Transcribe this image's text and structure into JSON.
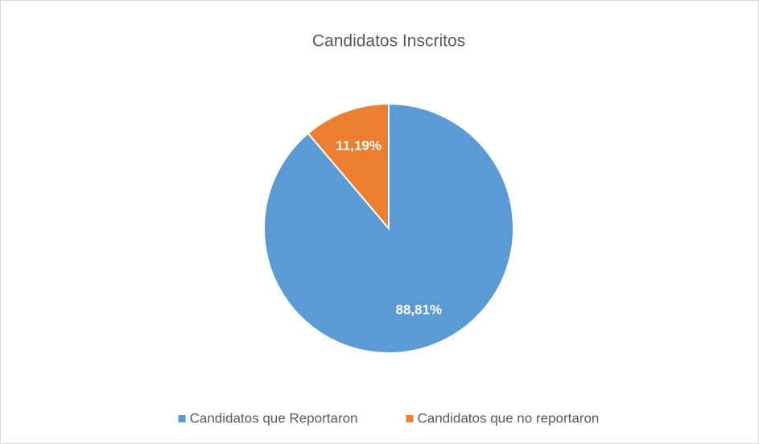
{
  "chart_data": {
    "type": "pie",
    "title": "Candidatos Inscritos",
    "categories": [
      "Candidatos que Reportaron",
      "Candidatos que no reportaron"
    ],
    "values": [
      88.81,
      11.19
    ],
    "value_labels": [
      "88,81%",
      "11,19%"
    ],
    "colors": [
      "#5b9bd5",
      "#ed7d31"
    ],
    "legend": "bottom"
  }
}
